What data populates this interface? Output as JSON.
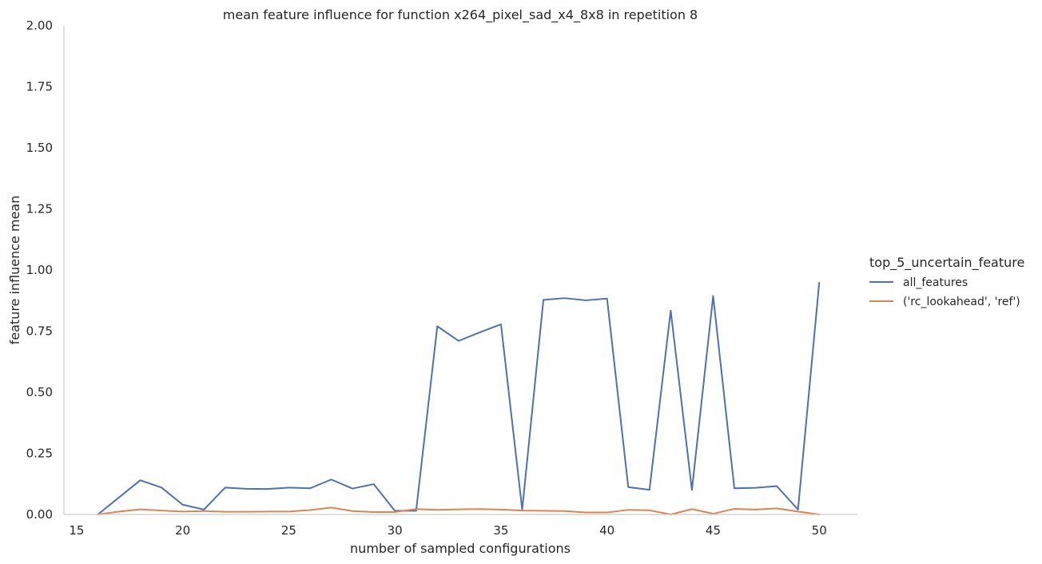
{
  "chart_data": {
    "type": "line",
    "title": "mean feature influence for function x264_pixel_sad_x4_8x8 in repetition 8",
    "xlabel": "number of sampled configurations",
    "ylabel": "feature influence mean",
    "xlim": [
      14.4,
      51.8
    ],
    "ylim": [
      0,
      2.0
    ],
    "xticks": [
      15,
      20,
      25,
      30,
      35,
      40,
      45,
      50
    ],
    "yticks": [
      0.0,
      0.25,
      0.5,
      0.75,
      1.0,
      1.25,
      1.5,
      1.75,
      2.0
    ],
    "ytick_labels": [
      "0.00",
      "0.25",
      "0.50",
      "0.75",
      "1.00",
      "1.25",
      "1.50",
      "1.75",
      "2.00"
    ],
    "grid": false,
    "legend": {
      "title": "top_5_uncertain_feature",
      "placement": "right"
    },
    "x": [
      16,
      17,
      18,
      19,
      20,
      21,
      22,
      23,
      24,
      25,
      26,
      27,
      28,
      29,
      30,
      31,
      32,
      33,
      34,
      35,
      36,
      37,
      38,
      39,
      40,
      41,
      42,
      43,
      44,
      45,
      46,
      47,
      48,
      49,
      50
    ],
    "series": [
      {
        "name": "all_features",
        "color": "#4c72b0",
        "values": [
          0.0,
          0.07,
          0.14,
          0.11,
          0.04,
          0.02,
          0.11,
          0.105,
          0.104,
          0.11,
          0.107,
          0.143,
          0.106,
          0.124,
          0.015,
          0.015,
          0.77,
          0.71,
          0.745,
          0.778,
          0.02,
          0.878,
          0.885,
          0.876,
          0.883,
          0.112,
          0.101,
          0.834,
          0.1,
          0.894,
          0.107,
          0.109,
          0.116,
          0.02,
          0.948
        ]
      },
      {
        "name": "('rc_lookahead', 'ref')",
        "color": "#dd8452",
        "values": [
          0.0,
          0.012,
          0.021,
          0.016,
          0.012,
          0.014,
          0.011,
          0.011,
          0.012,
          0.012,
          0.018,
          0.028,
          0.014,
          0.01,
          0.01,
          0.022,
          0.019,
          0.021,
          0.022,
          0.02,
          0.016,
          0.015,
          0.014,
          0.008,
          0.008,
          0.019,
          0.017,
          0.0,
          0.022,
          0.003,
          0.023,
          0.02,
          0.025,
          0.012,
          0.0
        ]
      }
    ]
  }
}
